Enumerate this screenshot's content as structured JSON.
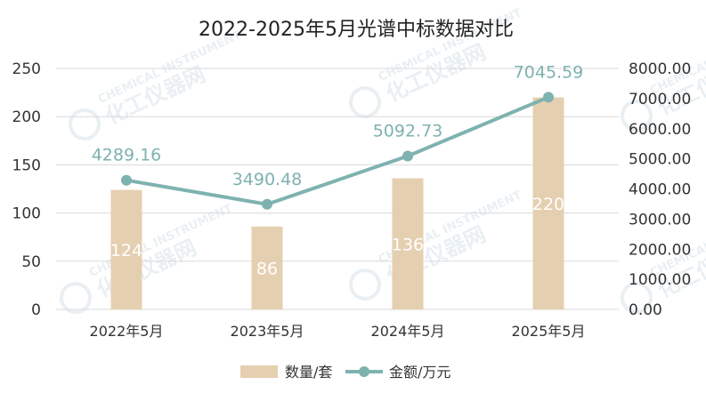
{
  "chart_data": {
    "type": "bar+line",
    "title": "2022-2025年5月光谱中标数据对比",
    "categories": [
      "2022年5月",
      "2023年5月",
      "2024年5月",
      "2025年5月"
    ],
    "series": [
      {
        "name": "数量/套",
        "type": "bar",
        "axis": "left",
        "values": [
          124,
          86,
          136,
          220
        ],
        "labels": [
          "124",
          "86",
          "136",
          "220"
        ]
      },
      {
        "name": "金额/万元",
        "type": "line",
        "axis": "right",
        "values": [
          4289.16,
          3490.48,
          5092.73,
          7045.59
        ],
        "labels": [
          "4289.16",
          "3490.48",
          "5092.73",
          "7045.59"
        ]
      }
    ],
    "y_left": {
      "min": 0,
      "max": 250,
      "ticks": [
        "0",
        "50",
        "100",
        "150",
        "200",
        "250"
      ]
    },
    "y_right": {
      "min": 0,
      "max": 8000,
      "ticks": [
        "0.00",
        "1000.00",
        "2000.00",
        "3000.00",
        "4000.00",
        "5000.00",
        "6000.00",
        "7000.00",
        "8000.00"
      ]
    },
    "grid": "horizontal",
    "legend_position": "bottom",
    "colors": {
      "bar": "#e5cfb1",
      "line": "#7eb2af",
      "grid": "#d9d9d9",
      "line_label": "#7eb2af"
    }
  },
  "watermark": {
    "brand_en": "CHEMICAL INSTRUMENT",
    "brand_cn": "化工仪器网"
  }
}
